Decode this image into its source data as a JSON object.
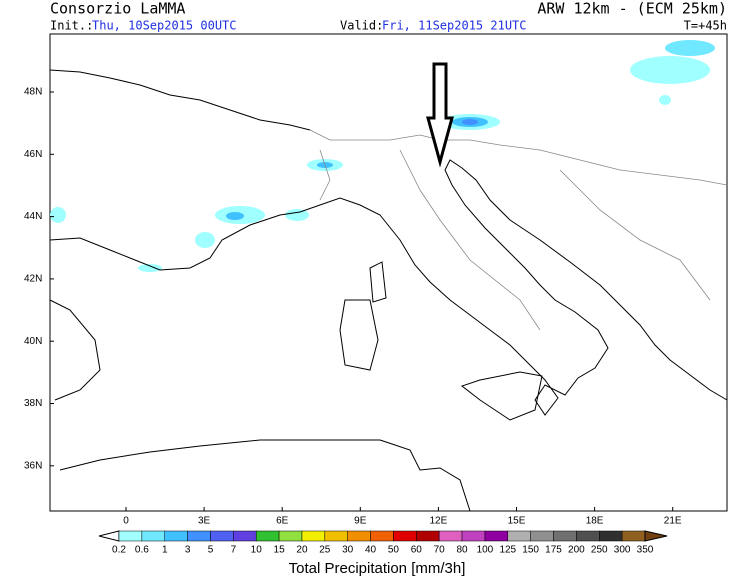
{
  "header": {
    "title": "Consorzio LaMMA",
    "model": "ARW 12km - (ECM 25km)",
    "init_label": "Init.:",
    "init_value": "Thu, 10Sep2015 00UTC",
    "valid_label": "Valid:",
    "valid_value": "Fri, 11Sep2015 21UTC",
    "forecast_step": "T=+45h"
  },
  "map": {
    "lat_labels": [
      "48N",
      "46N",
      "44N",
      "42N",
      "40N",
      "38N",
      "36N"
    ],
    "lon_labels": [
      "0",
      "3E",
      "6E",
      "9E",
      "12E",
      "15E",
      "18E",
      "21E"
    ]
  },
  "colorbar": {
    "title": "Total Precipitation [mm/3h]",
    "labels": [
      "0.2",
      "0.6",
      "1",
      "3",
      "5",
      "7",
      "10",
      "15",
      "20",
      "25",
      "30",
      "40",
      "50",
      "60",
      "70",
      "80",
      "100",
      "125",
      "150",
      "175",
      "200",
      "250",
      "300",
      "350"
    ],
    "colors": [
      "#a0ffff",
      "#70e8ff",
      "#40c0ff",
      "#4090ff",
      "#5060f0",
      "#6040e0",
      "#30c030",
      "#90e040",
      "#f0f000",
      "#f0c000",
      "#f09000",
      "#f06000",
      "#e00000",
      "#b00000",
      "#e060c0",
      "#c040c0",
      "#9000a0",
      "#b0b0b0",
      "#909090",
      "#707070",
      "#505050",
      "#303030",
      "#906020",
      "#704010"
    ]
  }
}
